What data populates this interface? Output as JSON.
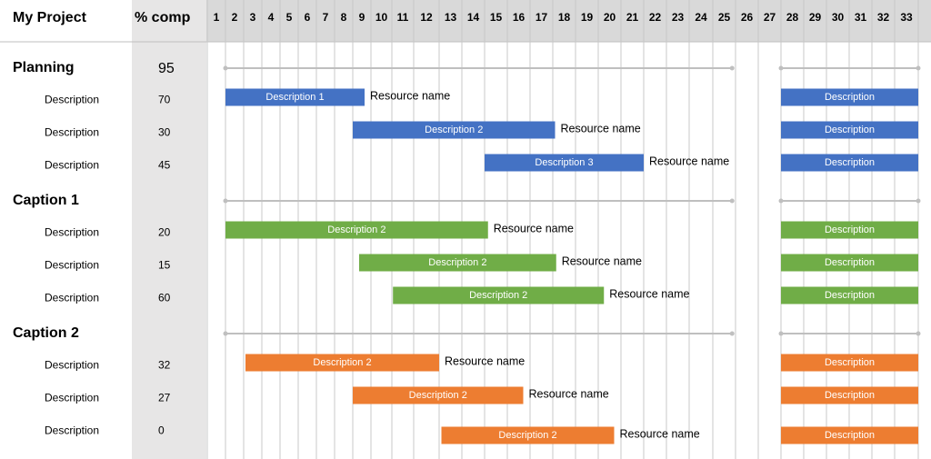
{
  "header": {
    "project": "My Project",
    "pct": "% comp",
    "days": [
      1,
      2,
      3,
      4,
      5,
      6,
      7,
      8,
      9,
      10,
      11,
      12,
      13,
      14,
      15,
      16,
      17,
      18,
      19,
      20,
      21,
      22,
      23,
      24,
      25,
      26,
      27,
      28,
      29,
      30,
      31,
      32,
      33
    ]
  },
  "groups": [
    {
      "name": "Planning",
      "pct": 95,
      "color": "#4472c4",
      "summary": [
        {
          "start": 2,
          "end": 25.85
        },
        {
          "start": 28,
          "end": 34
        }
      ],
      "tasks": [
        {
          "label": "Description",
          "pct": 70,
          "bar": "Description 1",
          "resource": "Resource name",
          "start": 2,
          "end": 9.65,
          "right": {
            "label": "Description",
            "start": 28,
            "end": 34
          }
        },
        {
          "label": "Description",
          "pct": 30,
          "bar": "Description 2",
          "resource": "Resource name",
          "start": 9,
          "end": 18.1,
          "right": {
            "label": "Description",
            "start": 28,
            "end": 34
          }
        },
        {
          "label": "Description",
          "pct": 45,
          "bar": "Description 3",
          "resource": "Resource name",
          "start": 15,
          "end": 22,
          "right": {
            "label": "Description",
            "start": 28,
            "end": 34
          }
        }
      ]
    },
    {
      "name": "Caption 1",
      "color": "#70ad47",
      "summary": [
        {
          "start": 2,
          "end": 25.85
        },
        {
          "start": 28,
          "end": 34
        }
      ],
      "tasks": [
        {
          "label": "Description",
          "pct": 20,
          "bar": "Description 2",
          "resource": "Resource name",
          "start": 2,
          "end": 15.15,
          "right": {
            "label": "Description",
            "start": 28,
            "end": 34
          }
        },
        {
          "label": "Description",
          "pct": 15,
          "bar": "Description 2",
          "resource": "Resource name",
          "start": 9.35,
          "end": 18.15,
          "right": {
            "label": "Description",
            "start": 28,
            "end": 34
          }
        },
        {
          "label": "Description",
          "pct": 60,
          "bar": "Description 2",
          "resource": "Resource name",
          "start": 11.05,
          "end": 20.25,
          "right": {
            "label": "Description",
            "start": 28,
            "end": 34
          }
        }
      ]
    },
    {
      "name": "Caption 2",
      "color": "#ed7d31",
      "summary": [
        {
          "start": 2,
          "end": 25.85
        },
        {
          "start": 28,
          "end": 34
        }
      ],
      "tasks": [
        {
          "label": "Description",
          "pct": 32,
          "bar": "Description 2",
          "resource": "Resource name",
          "start": 3.1,
          "end": 13,
          "right": {
            "label": "Description",
            "start": 28,
            "end": 34
          }
        },
        {
          "label": "Description",
          "pct": 27,
          "bar": "Description 2",
          "resource": "Resource name",
          "start": 9,
          "end": 16.7,
          "right": {
            "label": "Description",
            "start": 28,
            "end": 34
          }
        },
        {
          "label": "Description",
          "pct": 0,
          "bar": "Description 2",
          "resource": "Resource name",
          "start": 13.1,
          "end": 20.7,
          "right": {
            "label": "Description",
            "start": 28,
            "end": 34
          }
        }
      ]
    }
  ]
}
